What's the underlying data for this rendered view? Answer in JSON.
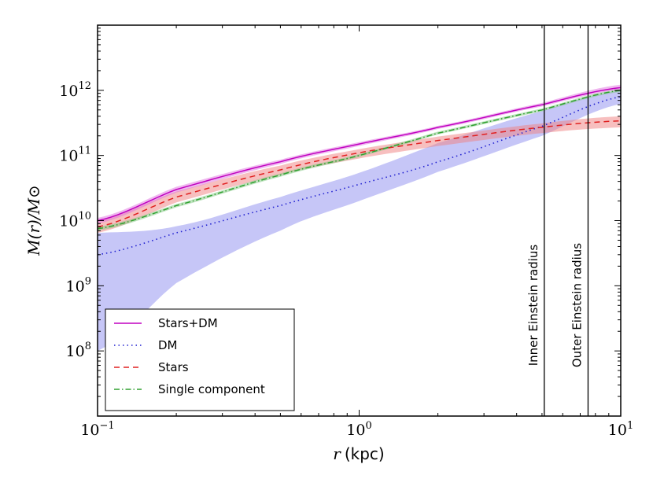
{
  "chart_data": {
    "type": "line",
    "xscale": "log",
    "yscale": "log",
    "xlim": [
      0.1,
      10
    ],
    "ylim": [
      10000000.0,
      10000000000000.0
    ],
    "xlabel": {
      "var": "r",
      "unit": "(kpc)"
    },
    "ylabel": "M(r)/M⊙",
    "x_ticks": [
      {
        "value": 0.1,
        "base": "10",
        "exp": "−1"
      },
      {
        "value": 1,
        "base": "10",
        "exp": "0"
      },
      {
        "value": 10,
        "base": "10",
        "exp": "1"
      }
    ],
    "y_ticks": [
      {
        "value": 100000000.0,
        "base": "10",
        "exp": "8"
      },
      {
        "value": 1000000000.0,
        "base": "10",
        "exp": "9"
      },
      {
        "value": 10000000000.0,
        "base": "10",
        "exp": "10"
      },
      {
        "value": 100000000000.0,
        "base": "10",
        "exp": "11"
      },
      {
        "value": 1000000000000.0,
        "base": "10",
        "exp": "12"
      }
    ],
    "series": [
      {
        "name": "Stars+DM",
        "style": "solid",
        "color": "#c000c0",
        "band_color": "#e070e0",
        "x": [
          0.1,
          0.2,
          0.5,
          1,
          2,
          5,
          10
        ],
        "y": [
          10000000000.0,
          30000000000.0,
          80000000000.0,
          150000000000.0,
          270000000000.0,
          600000000000.0,
          1100000000000.0
        ],
        "lower": [
          9000000000.0,
          27000000000.0,
          74000000000.0,
          140000000000.0,
          255000000000.0,
          565000000000.0,
          1020000000000.0
        ],
        "upper": [
          11000000000.0,
          33000000000.0,
          86000000000.0,
          160000000000.0,
          285000000000.0,
          640000000000.0,
          1220000000000.0
        ]
      },
      {
        "name": "DM",
        "style": "dotted",
        "color": "#2020d0",
        "band_color": "#8080ee",
        "x": [
          0.1,
          0.2,
          0.5,
          1,
          2,
          5,
          10
        ],
        "y": [
          3000000000.0,
          6500000000.0,
          17000000000.0,
          36000000000.0,
          80000000000.0,
          280000000000.0,
          800000000000.0
        ],
        "lower": [
          100000000.0,
          1100000000.0,
          7000000000.0,
          20000000000.0,
          56000000000.0,
          200000000000.0,
          620000000000.0
        ],
        "upper": [
          6500000000.0,
          8200000000.0,
          23000000000.0,
          54000000000.0,
          155000000000.0,
          480000000000.0,
          1000000000000.0
        ]
      },
      {
        "name": "Stars",
        "style": "dashed",
        "color": "#e02020",
        "band_color": "#f08080",
        "x": [
          0.1,
          0.2,
          0.5,
          1,
          2,
          5,
          10
        ],
        "y": [
          8000000000.0,
          23000000000.0,
          60000000000.0,
          110000000000.0,
          170000000000.0,
          270000000000.0,
          340000000000.0
        ],
        "lower": [
          6500000000.0,
          19000000000.0,
          50000000000.0,
          90000000000.0,
          140000000000.0,
          220000000000.0,
          270000000000.0
        ],
        "upper": [
          10000000000.0,
          28000000000.0,
          70000000000.0,
          125000000000.0,
          195000000000.0,
          310000000000.0,
          400000000000.0
        ]
      },
      {
        "name": "Single component",
        "style": "dashdot",
        "color": "#30a030",
        "band_color": "#80c880",
        "x": [
          0.1,
          0.2,
          0.5,
          1,
          2,
          5,
          10
        ],
        "y": [
          7500000000.0,
          17000000000.0,
          50000000000.0,
          100000000000.0,
          220000000000.0,
          500000000000.0,
          1000000000000.0
        ],
        "lower": [
          7000000000.0,
          16000000000.0,
          47000000000.0,
          95000000000.0,
          210000000000.0,
          475000000000.0,
          950000000000.0
        ],
        "upper": [
          8000000000.0,
          18000000000.0,
          53000000000.0,
          105000000000.0,
          232000000000.0,
          525000000000.0,
          1050000000000.0
        ]
      }
    ],
    "vlines": [
      {
        "x": 5.1,
        "label": "Inner Einstein radius"
      },
      {
        "x": 7.5,
        "label": "Outer Einstein radius"
      }
    ],
    "legend_position": "lower-left",
    "grid": false
  }
}
